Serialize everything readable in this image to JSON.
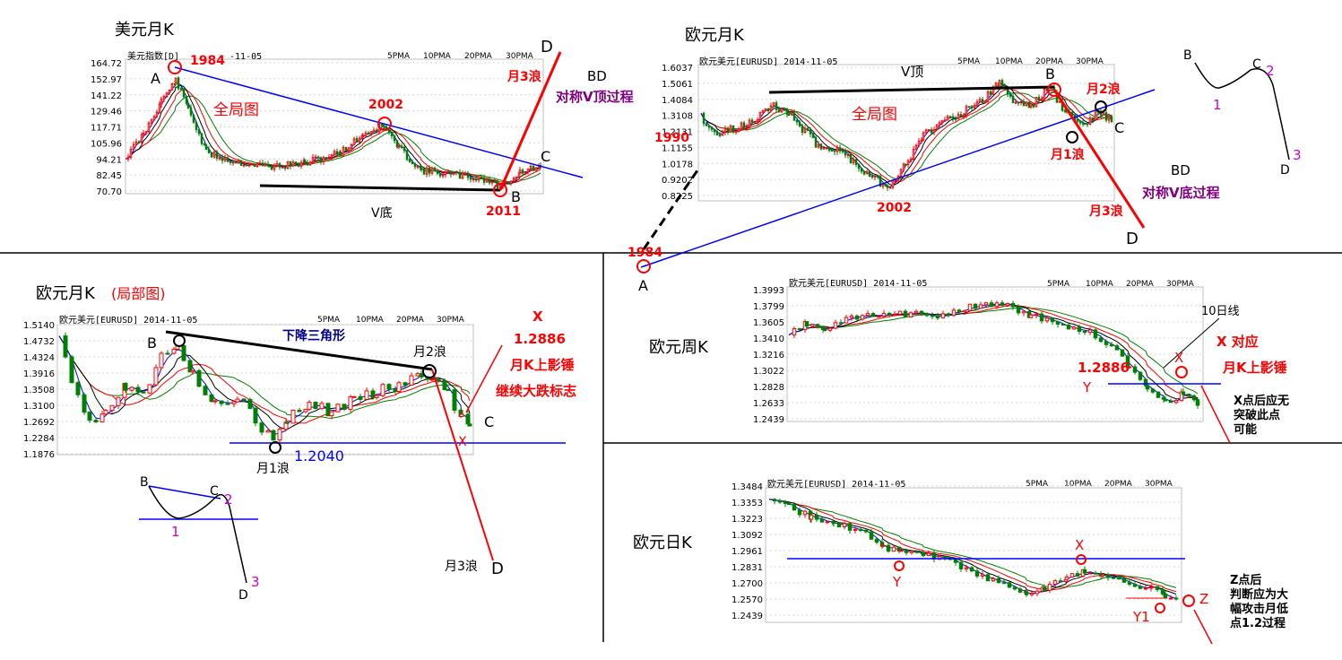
{
  "colors": {
    "up": "#ff0000",
    "down": "#008000",
    "ma5": "#0000ff",
    "ma10": "#000000",
    "ma20": "#ff0000",
    "ma30": "#008000",
    "trend_blue": "#0000ff",
    "trend_red": "#ff0000",
    "label_red": "#ff0000",
    "label_purple": "#800080",
    "label_blue": "#00008b"
  },
  "ma_legend": [
    "5PMA",
    "10PMA",
    "20PMA",
    "30PMA"
  ],
  "panels": {
    "usd_monthly": {
      "title": "美元月K",
      "chart_header": "美元指数[D]",
      "header_date": "-11-05",
      "ticks": [
        "164.72",
        "152.97",
        "141.22",
        "129.46",
        "117.71",
        "105.96",
        "94.21",
        "82.45",
        "70.70"
      ],
      "labels": {
        "y1984": "1984",
        "a": "A",
        "all": "全局图",
        "y2002": "2002",
        "vbottom": "V底",
        "y2011": "2011",
        "b": "B",
        "c": "C",
        "d": "D",
        "wave3": "月3浪",
        "bd": "BD",
        "bd_desc": "对称V顶过程"
      }
    },
    "eur_monthly_global": {
      "title": "欧元月K",
      "chart_header": "欧元美元[EURUSD] 2014-11-05",
      "ticks": [
        "1.6037",
        "1.5061",
        "1.4084",
        "1.3108",
        "1.2131",
        "1.1155",
        "1.0178",
        "0.9202",
        "0.8225"
      ],
      "tick_notes": {
        "y1990": "1990"
      },
      "labels": {
        "vtop": "V顶",
        "b": "B",
        "wave2": "月2浪",
        "all": "全局图",
        "c": "C",
        "wave1": "月1浪",
        "y2002": "2002",
        "bd": "BD",
        "bd_desc": "对称V底过程",
        "wave3": "月3浪",
        "d": "D",
        "y1984": "1984",
        "a": "A"
      }
    },
    "sketch_top": {
      "labels": {
        "b": "B",
        "c": "C",
        "n2": "2",
        "n1": "1",
        "d": "D",
        "n3": "3"
      }
    },
    "eur_monthly_local": {
      "title": "欧元月K",
      "title_note": "(局部图)",
      "chart_header": "欧元美元[EURUSD] 2014-11-05",
      "ticks": [
        "1.5140",
        "1.4732",
        "1.4324",
        "1.3916",
        "1.3508",
        "1.3100",
        "1.2692",
        "1.2284",
        "1.1876"
      ],
      "labels": {
        "b": "B",
        "triangle": "下降三角形",
        "wave2": "月2浪",
        "c": "C",
        "x": "X",
        "wave1": "月1浪",
        "level": "1.2040",
        "wave3": "月3浪",
        "d": "D",
        "note_x": "X",
        "note_price": "1.2886",
        "note_hammer": "月K上影锤",
        "note_signal": "继续大跌标志"
      }
    },
    "sketch_bottom": {
      "labels": {
        "b": "B",
        "c": "C",
        "n2": "2",
        "n1": "1",
        "d": "D",
        "n3": "3"
      }
    },
    "eur_weekly": {
      "title": "欧元周K",
      "chart_header": "欧元美元[EURUSD] 2014-11-05",
      "ticks": [
        "1.3993",
        "1.3799",
        "1.3605",
        "1.3410",
        "1.3216",
        "1.3022",
        "1.2828",
        "1.2633",
        "1.2439"
      ],
      "labels": {
        "ma10": "10日线",
        "x_match": "X 对应",
        "hammer": "月K上影锤",
        "price": "1.2886",
        "y": "Y",
        "x": "X",
        "note1": "X点后应无",
        "note2": "突破此点",
        "note3": "可能"
      }
    },
    "eur_daily": {
      "title": "欧元日K",
      "chart_header": "欧元美元[EURUSD] 2014-11-05",
      "ticks": [
        "1.3484",
        "1.3353",
        "1.3223",
        "1.3092",
        "1.2961",
        "1.2831",
        "1.2700",
        "1.2570",
        "1.2439"
      ],
      "labels": {
        "x": "X",
        "y": "Y",
        "y1": "Y1",
        "z": "Z",
        "note1": "Z点后",
        "note2": "判断应为大",
        "note3": "幅攻击月低",
        "note4": "点1.2过程"
      }
    }
  }
}
